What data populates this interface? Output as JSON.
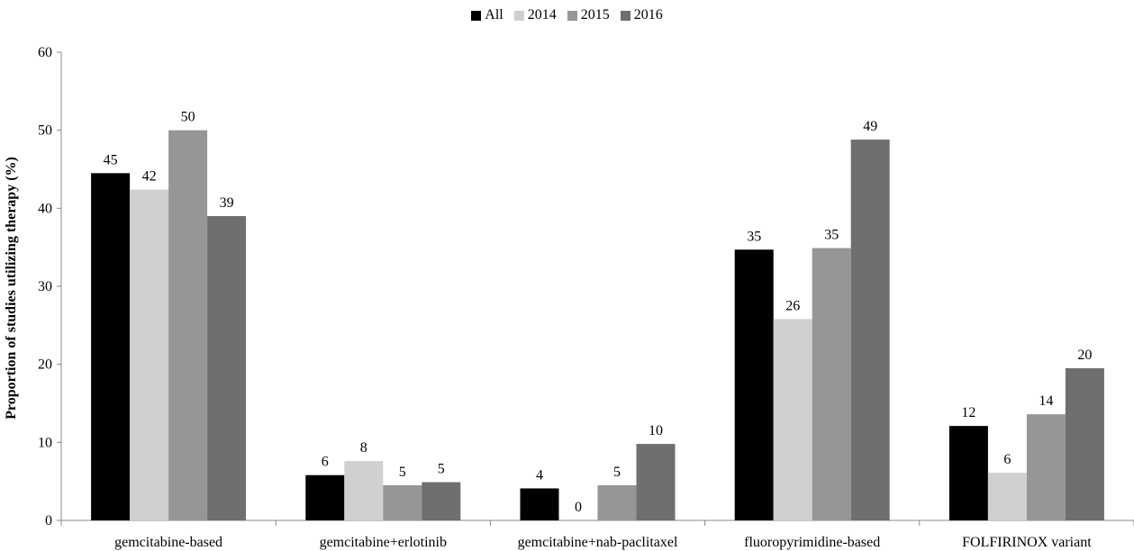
{
  "chart_data": {
    "type": "bar",
    "title": "",
    "xlabel": "",
    "ylabel": "Proportion of studies utilizing therapy (%)",
    "ylim": [
      0,
      60
    ],
    "yticks": [
      0,
      10,
      20,
      30,
      40,
      50,
      60
    ],
    "legend_position": "top-center",
    "grid": false,
    "categories": [
      "gemcitabine-based",
      "gemcitabine+erlotinib",
      "gemcitabine+nab-paclitaxel",
      "fluoropyrimidine-based",
      "FOLFIRINOX variant"
    ],
    "series": [
      {
        "name": "All",
        "color": "#000000",
        "values": [
          44.5,
          5.8,
          4.1,
          34.7,
          12.1
        ],
        "labels": [
          "45",
          "6",
          "4",
          "35",
          "12"
        ]
      },
      {
        "name": "2014",
        "color": "#d0d0d0",
        "values": [
          42.4,
          7.6,
          0,
          25.8,
          6.1
        ],
        "labels": [
          "42",
          "8",
          "0",
          "26",
          "6"
        ]
      },
      {
        "name": "2015",
        "color": "#969696",
        "values": [
          50.0,
          4.5,
          4.5,
          34.9,
          13.6
        ],
        "labels": [
          "50",
          "5",
          "5",
          "35",
          "14"
        ]
      },
      {
        "name": "2016",
        "color": "#6f6f6f",
        "values": [
          39.0,
          4.9,
          9.8,
          48.8,
          19.5
        ],
        "labels": [
          "39",
          "5",
          "10",
          "49",
          "20"
        ]
      }
    ]
  }
}
